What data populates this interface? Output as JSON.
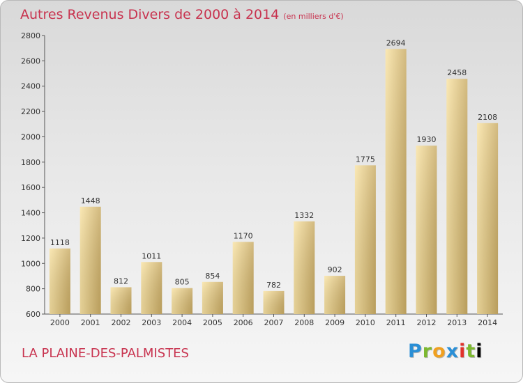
{
  "header": {
    "title": "Autres Revenus Divers de 2000 à 2014",
    "unit": "(en milliers d'€)"
  },
  "footer": {
    "place": "LA PLAINE-DES-PALMISTES",
    "logo": "Proxiti"
  },
  "colors": {
    "title": "#c8334f",
    "bar_light": "#f7dc95",
    "bar_dark": "#c8aa63"
  },
  "chart_data": {
    "type": "bar",
    "title": "Autres Revenus Divers de 2000 à 2014",
    "xlabel": "",
    "ylabel": "",
    "categories": [
      "2000",
      "2001",
      "2002",
      "2003",
      "2004",
      "2005",
      "2006",
      "2007",
      "2008",
      "2009",
      "2010",
      "2011",
      "2012",
      "2013",
      "2014"
    ],
    "values": [
      1118,
      1448,
      812,
      1011,
      805,
      854,
      1170,
      782,
      1332,
      902,
      1775,
      2694,
      1930,
      2458,
      2108
    ],
    "ylim": [
      600,
      2800
    ],
    "yticks": [
      600,
      800,
      1000,
      1200,
      1400,
      1600,
      1800,
      2000,
      2200,
      2400,
      2600,
      2800
    ],
    "grid": false,
    "legend": "none"
  }
}
